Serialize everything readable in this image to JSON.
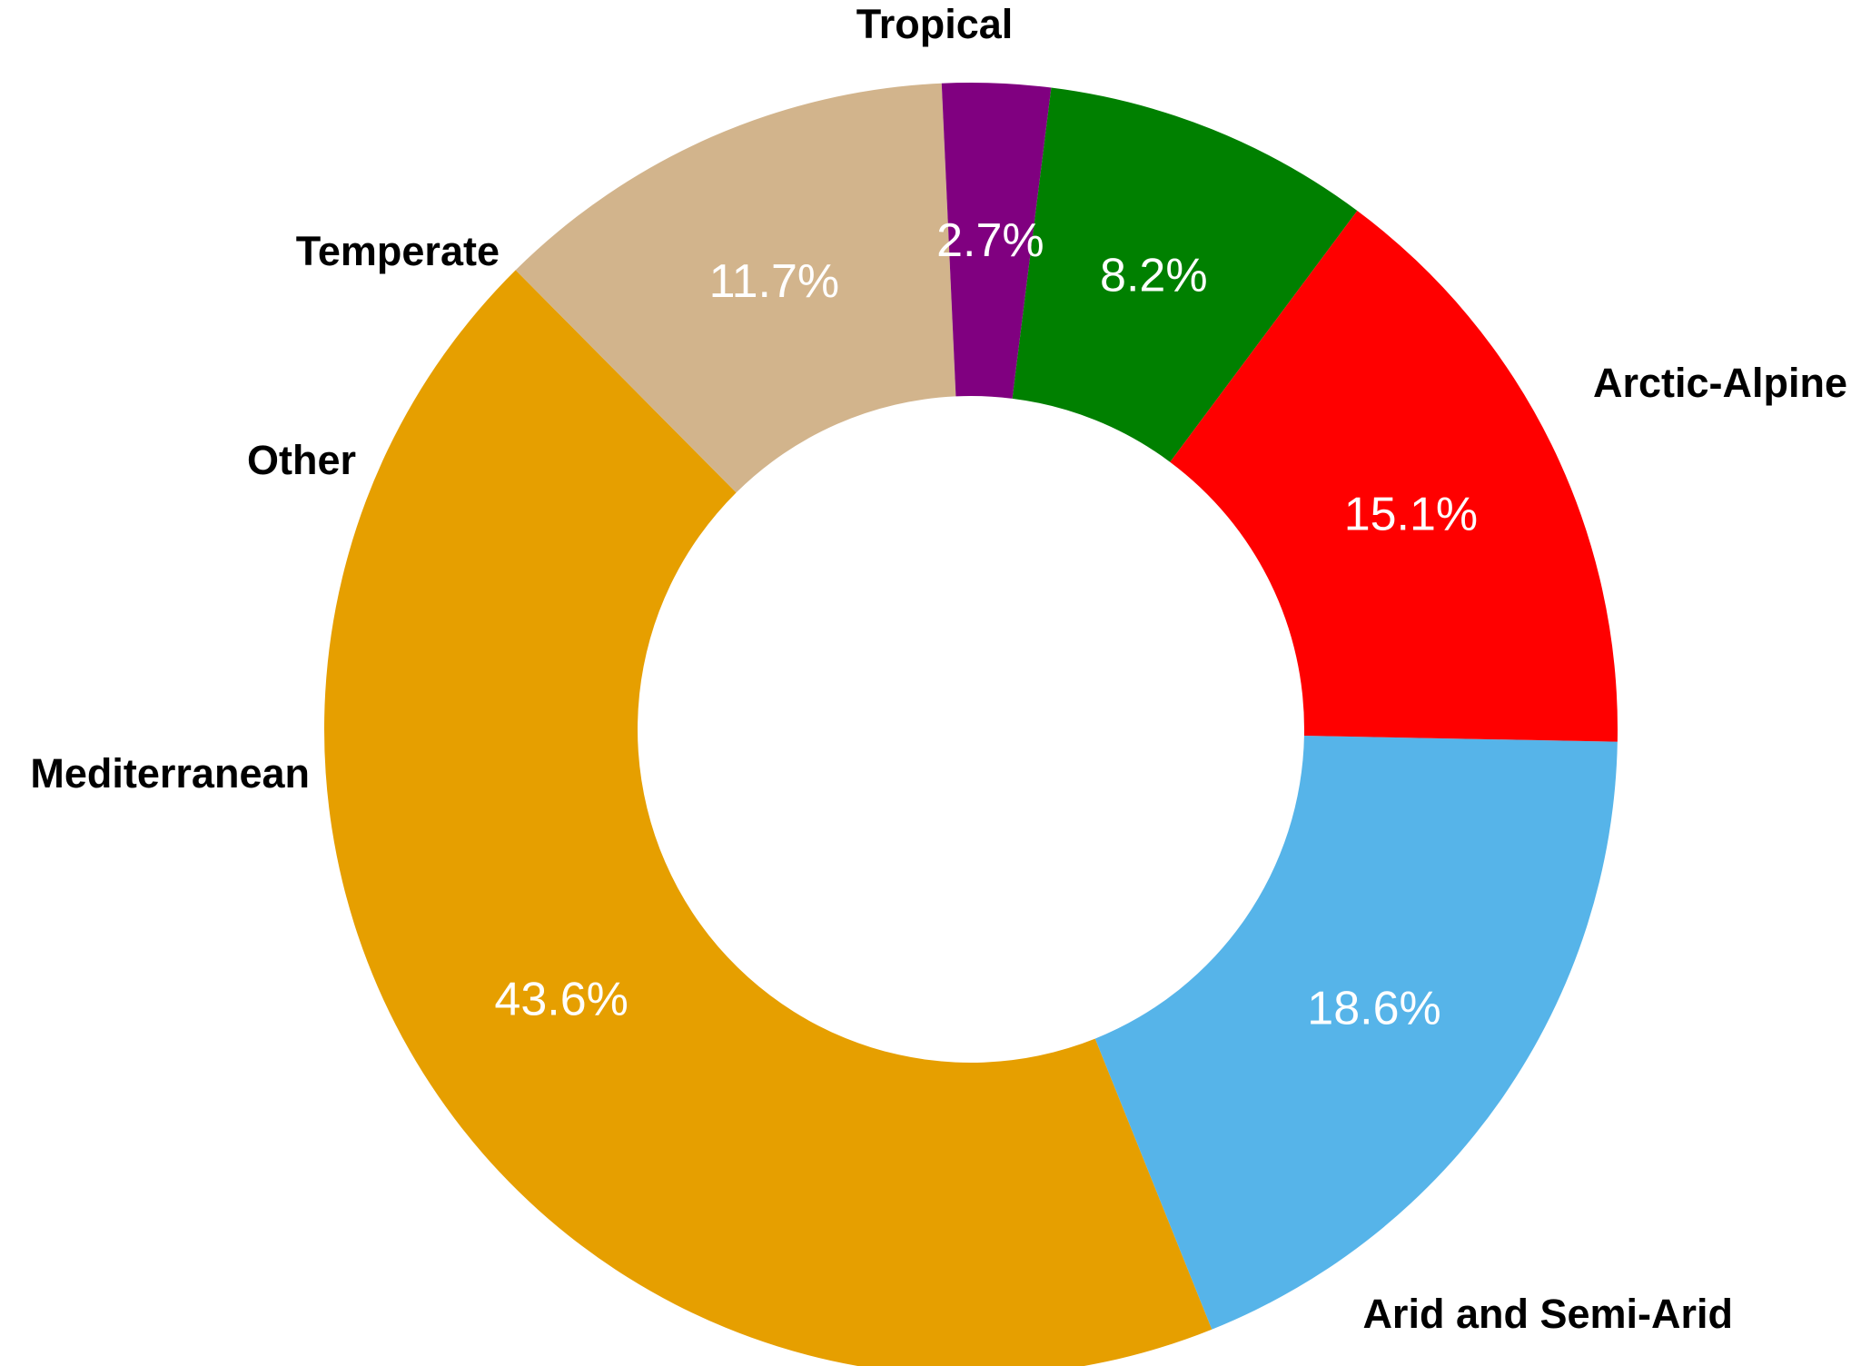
{
  "chart_data": {
    "type": "pie",
    "variant": "donut",
    "title": "",
    "legend": "none",
    "slices": [
      {
        "label": "Arctic-Alpine",
        "value": 18.6,
        "value_label": "18.6%",
        "color": "#56B4E9"
      },
      {
        "label": "Arid and Semi-Arid",
        "value": 43.6,
        "value_label": "43.6%",
        "color": "#E69F00"
      },
      {
        "label": "Mediterranean",
        "value": 11.7,
        "value_label": "11.7%",
        "color": "#D2B48C"
      },
      {
        "label": "Other",
        "value": 2.7,
        "value_label": "2.7%",
        "color": "#800080"
      },
      {
        "label": "Temperate",
        "value": 8.2,
        "value_label": "8.2%",
        "color": "#008000"
      },
      {
        "label": "Tropical",
        "value": 15.1,
        "value_label": "15.1%",
        "color": "#FF0000"
      }
    ]
  }
}
